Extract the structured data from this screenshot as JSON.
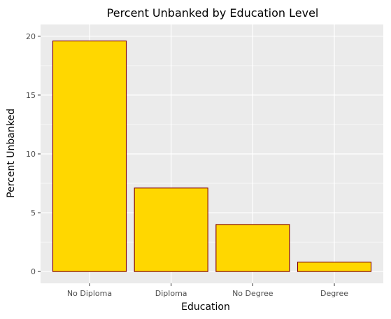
{
  "chart_data": {
    "type": "bar",
    "title": "Percent Unbanked by Education Level",
    "xlabel": "Education",
    "ylabel": "Percent Unbanked",
    "categories": [
      "No Diploma",
      "Diploma",
      "No Degree",
      "Degree"
    ],
    "values": [
      19.6,
      7.1,
      4.0,
      0.8
    ],
    "ylim": [
      -1,
      21
    ],
    "yticks": [
      0,
      5,
      10,
      15,
      20
    ],
    "grid": true,
    "colors": {
      "bar_fill": "#FFD700",
      "bar_outline": "#800000",
      "panel_background": "#EBEBEB",
      "grid_line": "#FFFFFF"
    }
  }
}
